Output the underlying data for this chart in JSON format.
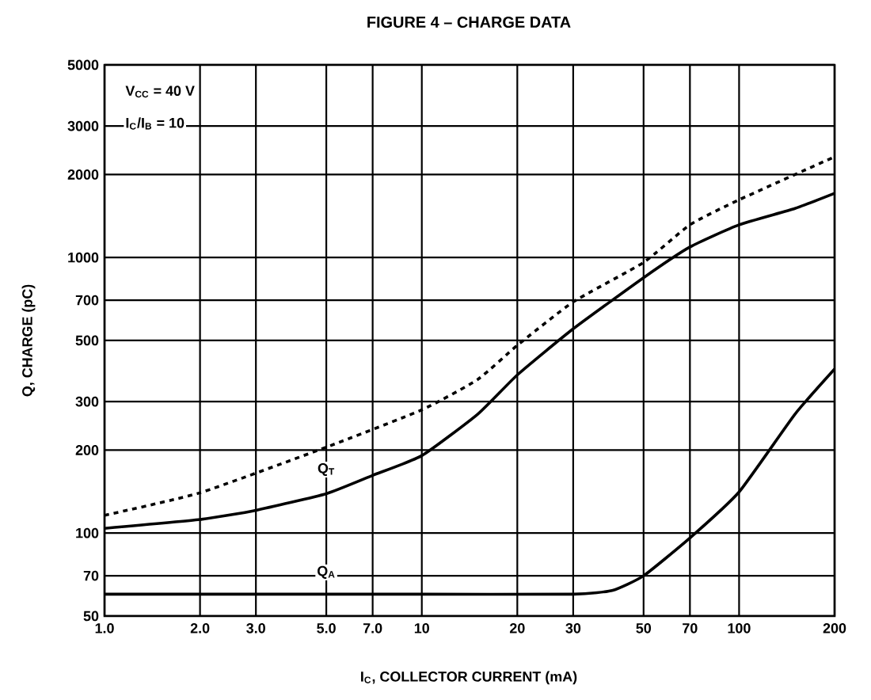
{
  "chart_data": {
    "type": "line",
    "title": "FIGURE 4 – CHARGE DATA",
    "xlabel": "I$_{C}$, COLLECTOR CURRENT (mA)",
    "ylabel": "Q, CHARGE (pC)",
    "log": "xy",
    "grid": true,
    "marker": "none",
    "xlim": [
      1,
      200
    ],
    "ylim": [
      50,
      5000
    ],
    "xticks": [
      {
        "value": 1,
        "label": "1.0"
      },
      {
        "value": 2,
        "label": "2.0"
      },
      {
        "value": 3,
        "label": "3.0"
      },
      {
        "value": 5,
        "label": "5.0"
      },
      {
        "value": 7,
        "label": "7.0"
      },
      10,
      20,
      30,
      50,
      70,
      100,
      200
    ],
    "yticks": [
      50,
      70,
      100,
      200,
      300,
      500,
      700,
      1000,
      2000,
      3000,
      5000
    ],
    "series": [
      {
        "color": "#000000",
        "line_style": "dashed",
        "x": [
          1,
          2,
          5,
          10,
          15,
          20,
          30,
          50,
          70,
          100,
          200
        ],
        "values": [
          116,
          140,
          205,
          280,
          361,
          480,
          690,
          960,
          1315,
          1620,
          2320
        ]
      },
      {
        "color": "#000000",
        "line_style": "solid",
        "x": [
          1,
          2,
          3,
          5,
          7,
          10,
          15,
          20,
          30,
          50,
          70,
          100,
          150,
          200
        ],
        "values": [
          104,
          112,
          121,
          139,
          162,
          191,
          270,
          375,
          551,
          845,
          1092,
          1315,
          1507,
          1710
        ]
      },
      {
        "color": "#000000",
        "line_style": "solid",
        "x": [
          1,
          10,
          30,
          40,
          50,
          70,
          100,
          150,
          200
        ],
        "values": [
          60,
          60,
          60,
          62,
          70,
          96,
          141,
          270,
          394
        ]
      }
    ],
    "annotations": [
      "V$_{CC}$ = 40 V",
      "I$_{C}$/I$_{B}$ = 10",
      {
        "text": "Q$_{T}$",
        "x": 5,
        "y": 170
      },
      {
        "text": "Q$_{A}$",
        "x": 5,
        "y": 72
      }
    ]
  }
}
